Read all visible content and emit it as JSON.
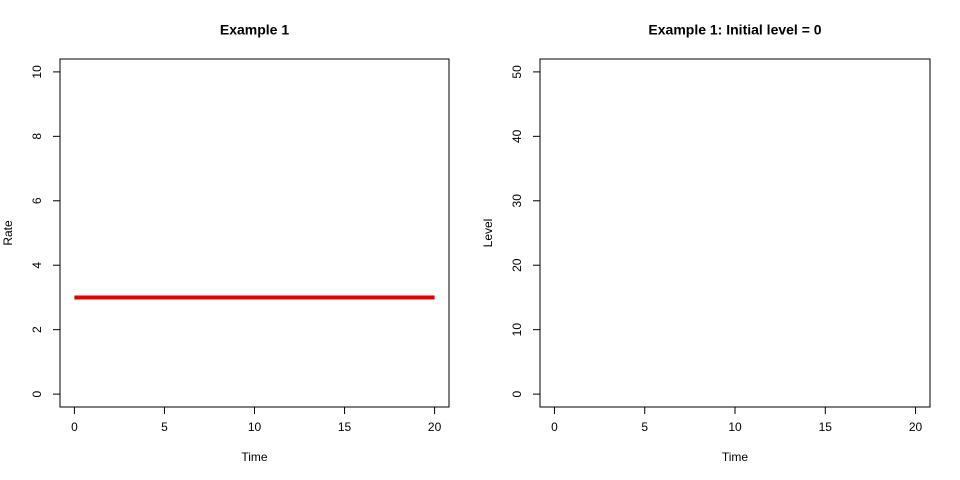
{
  "chart_data": [
    {
      "type": "line",
      "title": "Example 1",
      "xlabel": "Time",
      "ylabel": "Rate",
      "x": [
        0,
        20
      ],
      "series": [
        {
          "color": "#e00000",
          "values": [
            3,
            3
          ]
        }
      ],
      "xlim": [
        -0.8,
        20.8
      ],
      "xticks": [
        0,
        5,
        10,
        15,
        20
      ],
      "ylim": [
        -0.4,
        10.4
      ],
      "yticks": [
        0,
        2,
        4,
        6,
        8,
        10
      ]
    },
    {
      "type": "line",
      "title": "Example 1: Initial level = 0",
      "xlabel": "Time",
      "ylabel": "Level",
      "x": [],
      "series": [],
      "xlim": [
        -0.8,
        20.8
      ],
      "xticks": [
        0,
        5,
        10,
        15,
        20
      ],
      "ylim": [
        -2,
        52
      ],
      "yticks": [
        0,
        10,
        20,
        30,
        40,
        50
      ]
    }
  ]
}
